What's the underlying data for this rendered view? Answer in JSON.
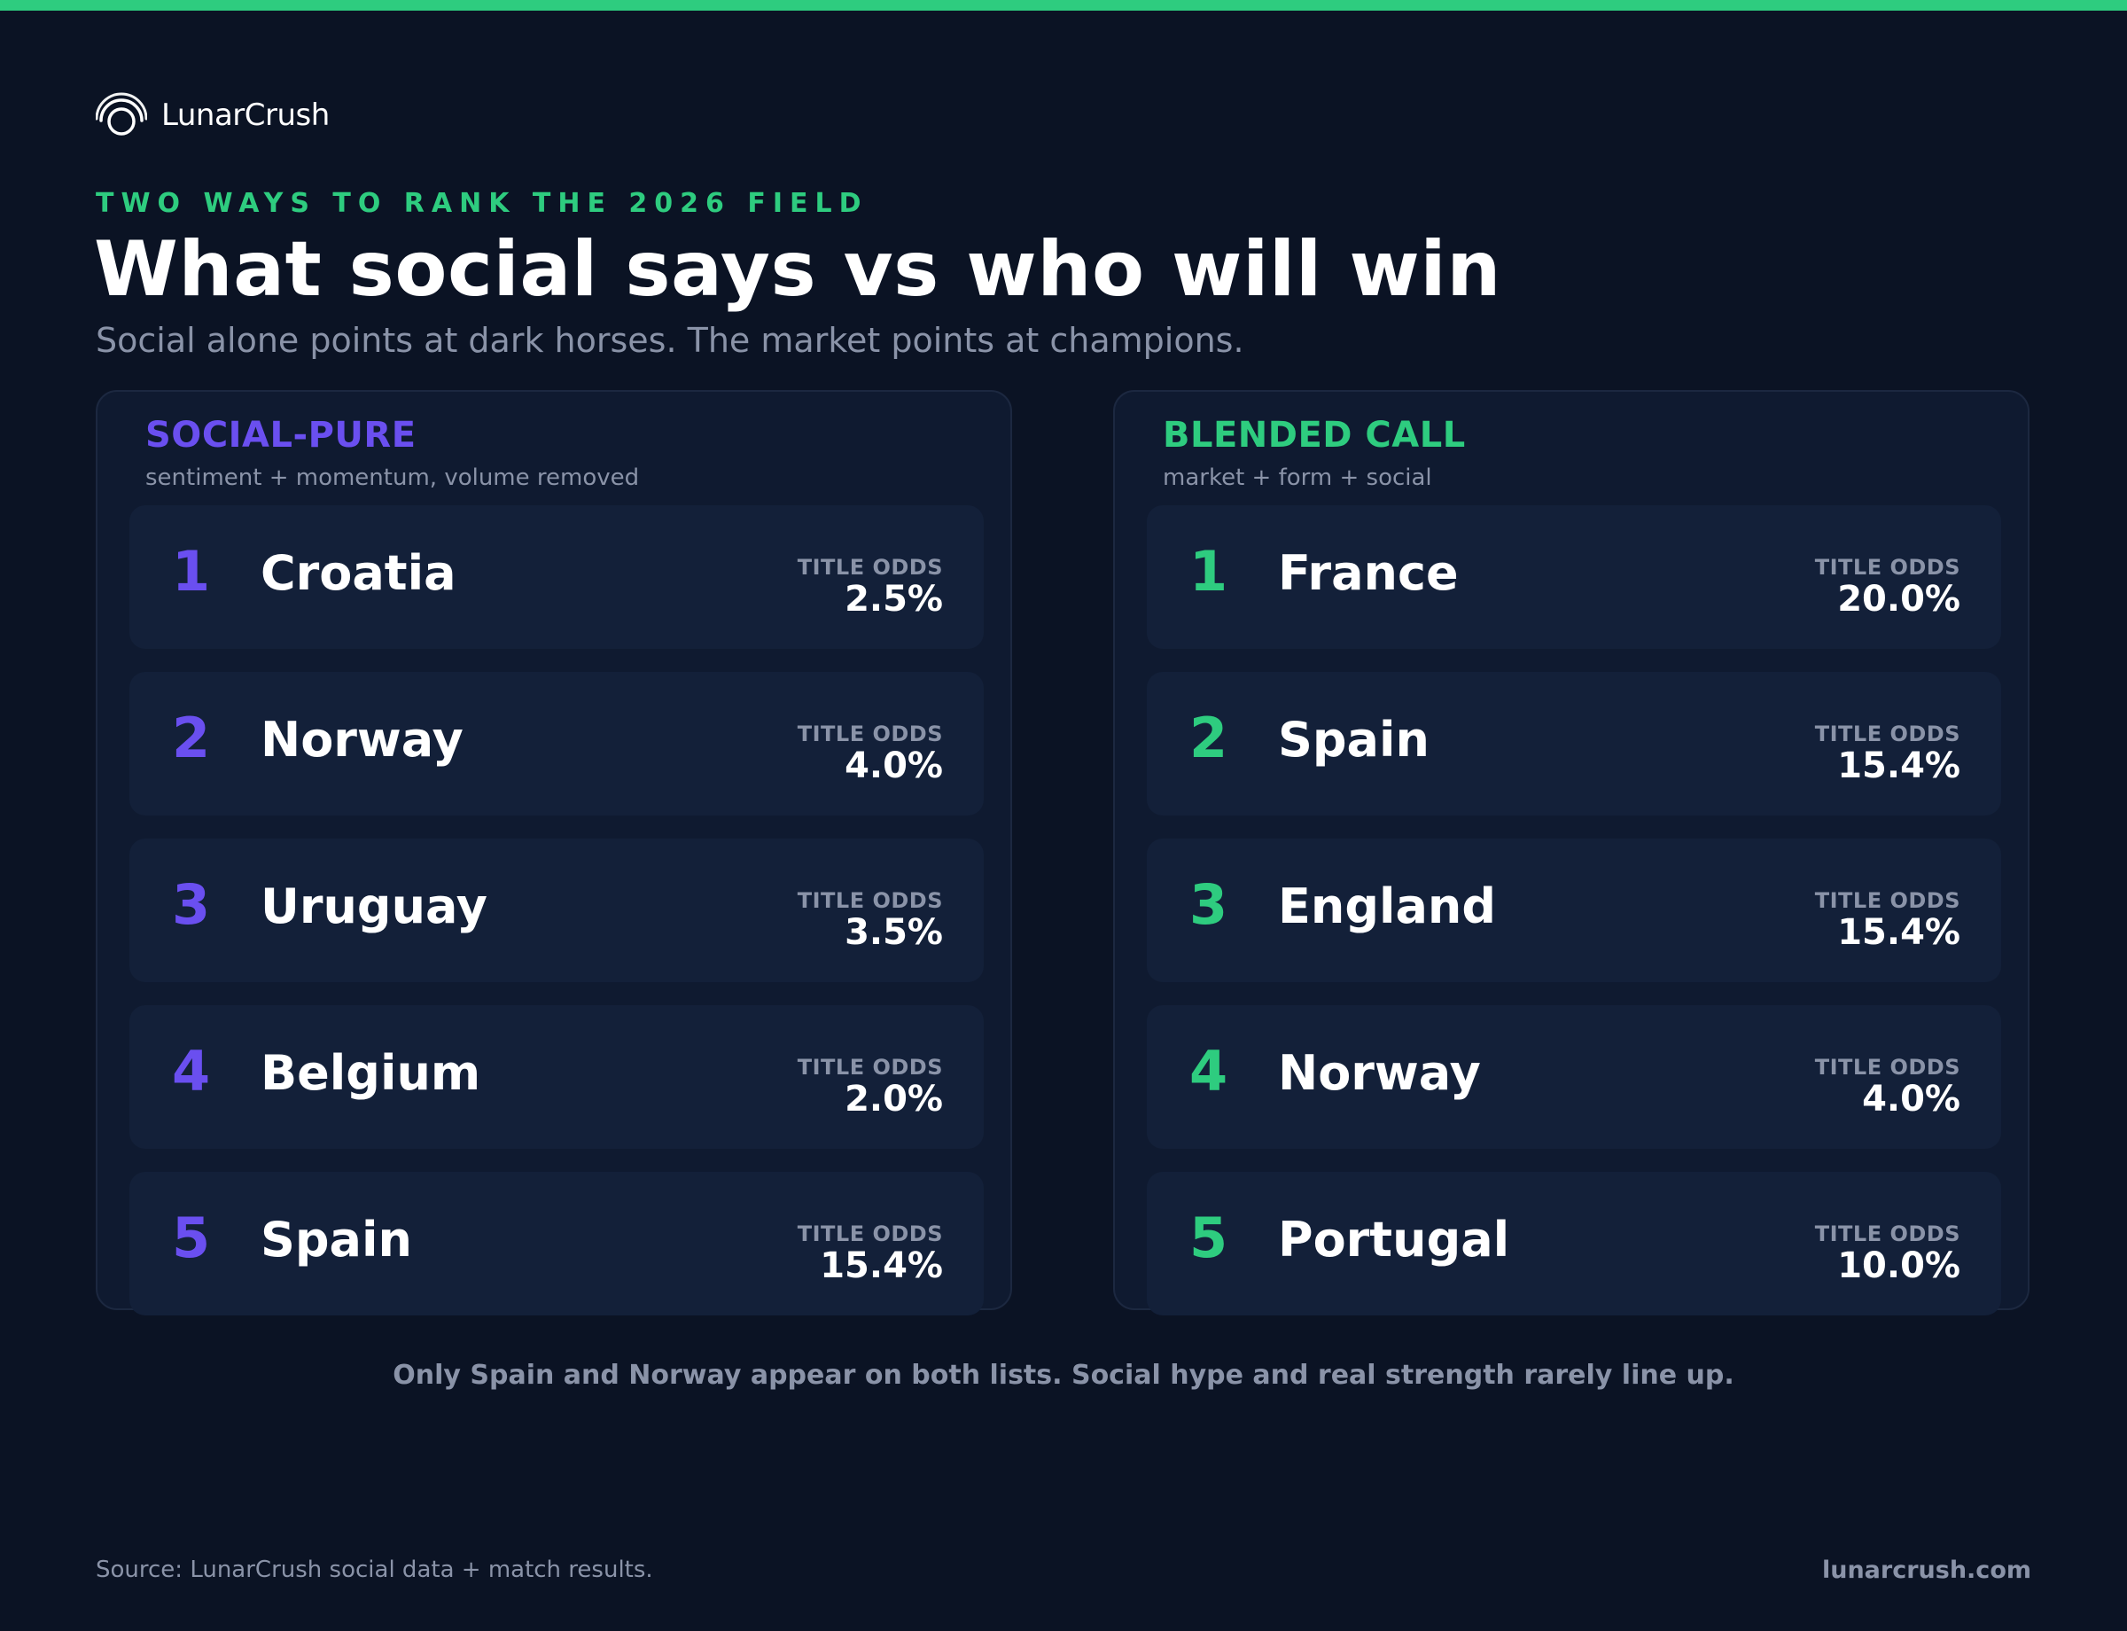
{
  "brand": {
    "name": "LunarCrush",
    "accent": "#2ecc7f",
    "purple": "#6a4ff0",
    "background": "#0b1324"
  },
  "header": {
    "kicker": "TWO WAYS TO RANK THE 2026 FIELD",
    "title": "What social says vs who will win",
    "subtitle": "Social alone points at dark horses. The market points at champions."
  },
  "panels": [
    {
      "title": "SOCIAL-PURE",
      "subtitle": "sentiment + momentum, volume removed",
      "rows": [
        {
          "rank": "1",
          "team": "Croatia",
          "odds_label": "TITLE ODDS",
          "odds": "2.5%"
        },
        {
          "rank": "2",
          "team": "Norway",
          "odds_label": "TITLE ODDS",
          "odds": "4.0%"
        },
        {
          "rank": "3",
          "team": "Uruguay",
          "odds_label": "TITLE ODDS",
          "odds": "3.5%"
        },
        {
          "rank": "4",
          "team": "Belgium",
          "odds_label": "TITLE ODDS",
          "odds": "2.0%"
        },
        {
          "rank": "5",
          "team": "Spain",
          "odds_label": "TITLE ODDS",
          "odds": "15.4%"
        }
      ]
    },
    {
      "title": "BLENDED CALL",
      "subtitle": "market + form + social",
      "rows": [
        {
          "rank": "1",
          "team": "France",
          "odds_label": "TITLE ODDS",
          "odds": "20.0%"
        },
        {
          "rank": "2",
          "team": "Spain",
          "odds_label": "TITLE ODDS",
          "odds": "15.4%"
        },
        {
          "rank": "3",
          "team": "England",
          "odds_label": "TITLE ODDS",
          "odds": "15.4%"
        },
        {
          "rank": "4",
          "team": "Norway",
          "odds_label": "TITLE ODDS",
          "odds": "4.0%"
        },
        {
          "rank": "5",
          "team": "Portugal",
          "odds_label": "TITLE ODDS",
          "odds": "10.0%"
        }
      ]
    }
  ],
  "footer": {
    "note": "Only Spain and Norway appear on both lists. Social hype and real strength rarely line up.",
    "source": "Source: LunarCrush social data + match results.",
    "site": "lunarcrush.com"
  }
}
